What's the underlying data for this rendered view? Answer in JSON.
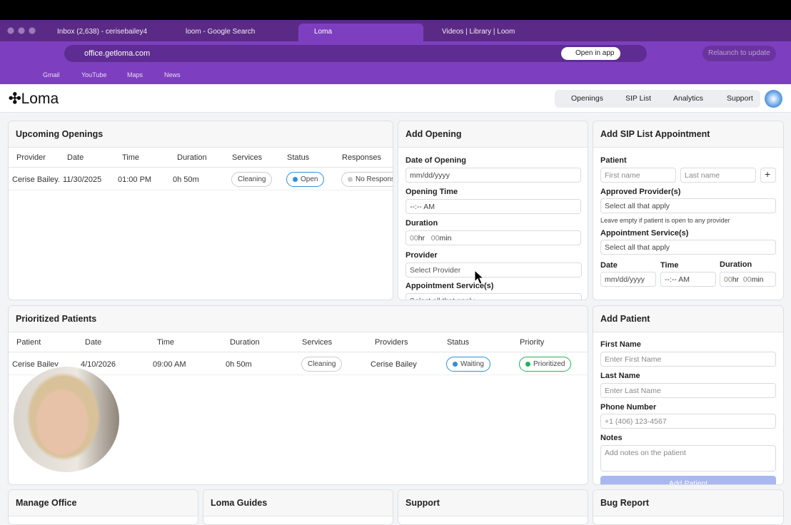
{
  "browser": {
    "tabs": [
      "Inbox (2,638) - cerisebailey4",
      "loom - Google Search",
      "Loma",
      "Videos | Library | Loom"
    ],
    "url": "office.getloma.com",
    "open_in_app": "Open in app",
    "relaunch": "Relaunch to update",
    "bookmarks": [
      "Gmail",
      "YouTube",
      "Maps",
      "News"
    ]
  },
  "header": {
    "logo": "Loma",
    "nav": [
      "Openings",
      "SIP List",
      "Analytics",
      "Support"
    ]
  },
  "upcoming": {
    "title": "Upcoming Openings",
    "columns": [
      "Provider",
      "Date",
      "Time",
      "Duration",
      "Services",
      "Status",
      "Responses"
    ],
    "rows": [
      [
        "Cerise Bailey.",
        "11/30/2025",
        "01:00 PM",
        "0h 50m",
        "Cleaning",
        "Open",
        "No Respons"
      ]
    ]
  },
  "add_opening": {
    "title": "Add Opening",
    "date_label": "Date of Opening",
    "date_placeholder": "mm/dd/yyyy",
    "time_label": "Opening Time",
    "time_placeholder": "--:-- AM",
    "duration_label": "Duration",
    "hours": "00",
    "hr": "hr",
    "minutes": "00",
    "min": "min",
    "provider_label": "Provider",
    "provider_placeholder": "Select Provider",
    "services_label": "Appointment Service(s)",
    "services_placeholder": "Select all that apply"
  },
  "sip": {
    "title": "Add SIP List Appointment",
    "patient_label": "Patient",
    "first_placeholder": "First name",
    "last_placeholder": "Last name",
    "plus": "+",
    "providers_label": "Approved Provider(s)",
    "providers_placeholder": "Select all that apply",
    "providers_hint": "Leave empty if patient is open to any provider",
    "services_label": "Appointment Service(s)",
    "services_placeholder": "Select all that apply",
    "date_label": "Date",
    "time_label": "Time",
    "duration_label": "Duration",
    "date_placeholder": "mm/dd/yyyy",
    "time_placeholder": "--:-- AM",
    "hours": "00",
    "hr": "hr",
    "minutes": "00",
    "min": "min"
  },
  "prioritized": {
    "title": "Prioritized Patients",
    "columns": [
      "Patient",
      "Date",
      "Time",
      "Duration",
      "Services",
      "Providers",
      "Status",
      "Priority"
    ],
    "rows": [
      [
        "Cerise Bailey",
        "4/10/2026",
        "09:00 AM",
        "0h 50m",
        "Cleaning",
        "Cerise Bailey",
        "Waiting",
        "Prioritized"
      ]
    ]
  },
  "add_patient": {
    "title": "Add Patient",
    "first_label": "First Name",
    "first_placeholder": "Enter First Name",
    "last_label": "Last Name",
    "last_placeholder": "Enter Last Name",
    "phone_label": "Phone Number",
    "phone_placeholder": "+1 (406) 123-4567",
    "notes_label": "Notes",
    "notes_placeholder": "Add notes on the patient",
    "button": "Add Patient"
  },
  "bottom_cards": [
    "Manage Office",
    "Loma Guides",
    "Support",
    "Bug Report"
  ]
}
